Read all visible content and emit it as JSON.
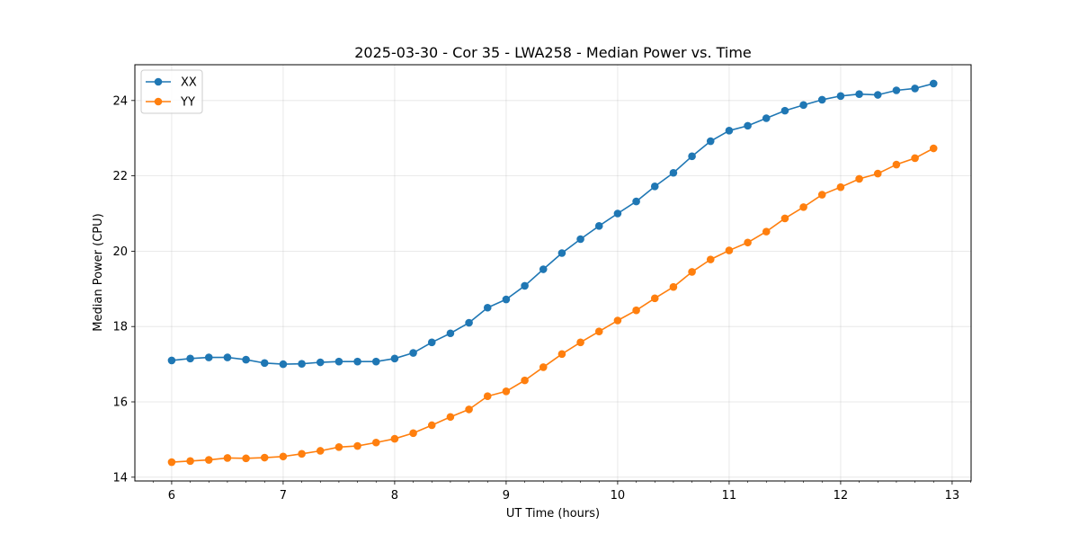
{
  "chart_data": {
    "type": "line",
    "title": "2025-03-30 - Cor 35 - LWA258 - Median Power vs. Time",
    "xlabel": "UT Time (hours)",
    "ylabel": "Median Power (CPU)",
    "xlim": [
      5.67,
      13.17
    ],
    "ylim": [
      13.9,
      24.95
    ],
    "xticks": [
      6,
      7,
      8,
      9,
      10,
      11,
      12,
      13
    ],
    "yticks": [
      14,
      16,
      18,
      20,
      22,
      24
    ],
    "grid": true,
    "legend_position": "upper-left",
    "x": [
      6.0,
      6.1667,
      6.3333,
      6.5,
      6.6667,
      6.8333,
      7.0,
      7.1667,
      7.3333,
      7.5,
      7.6667,
      7.8333,
      8.0,
      8.1667,
      8.3333,
      8.5,
      8.6667,
      8.8333,
      9.0,
      9.1667,
      9.3333,
      9.5,
      9.6667,
      9.8333,
      10.0,
      10.1667,
      10.3333,
      10.5,
      10.6667,
      10.8333,
      11.0,
      11.1667,
      11.3333,
      11.5,
      11.6667,
      11.8333,
      12.0,
      12.1667,
      12.3333,
      12.5,
      12.6667,
      12.8333
    ],
    "series": [
      {
        "name": "XX",
        "color": "#1f77b4",
        "values": [
          17.1,
          17.15,
          17.18,
          17.18,
          17.12,
          17.03,
          17.0,
          17.01,
          17.05,
          17.07,
          17.07,
          17.07,
          17.15,
          17.3,
          17.58,
          17.82,
          18.1,
          18.5,
          18.72,
          19.08,
          19.52,
          19.95,
          20.32,
          20.67,
          21.0,
          21.32,
          21.72,
          22.08,
          22.52,
          22.92,
          23.2,
          23.33,
          23.53,
          23.73,
          23.88,
          24.02,
          24.12,
          24.17,
          24.15,
          24.27,
          24.32,
          24.45
        ]
      },
      {
        "name": "YY",
        "color": "#ff7f0e",
        "values": [
          14.4,
          14.43,
          14.46,
          14.51,
          14.5,
          14.52,
          14.55,
          14.62,
          14.7,
          14.8,
          14.83,
          14.92,
          15.02,
          15.17,
          15.38,
          15.6,
          15.8,
          16.15,
          16.28,
          16.57,
          16.92,
          17.27,
          17.58,
          17.87,
          18.16,
          18.43,
          18.75,
          19.05,
          19.45,
          19.78,
          20.02,
          20.23,
          20.52,
          20.87,
          21.17,
          21.5,
          21.7,
          21.92,
          22.06,
          22.3,
          22.47,
          22.73
        ]
      }
    ]
  }
}
